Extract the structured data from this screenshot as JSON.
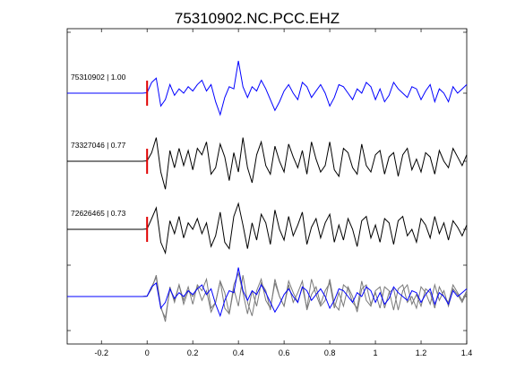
{
  "chart_data": {
    "type": "line",
    "title": "75310902.NC.PCC.EHZ",
    "xlabel": "",
    "ylabel": "",
    "xlim": [
      -0.35,
      1.4
    ],
    "xticks": [
      "-0.2",
      "0",
      "0.2",
      "0.4",
      "0.6",
      "0.8",
      "1",
      "1.2",
      "1.4"
    ],
    "xtick_values": [
      -0.2,
      0,
      0.2,
      0.4,
      0.6,
      0.8,
      1.0,
      1.2,
      1.4
    ],
    "grid": false,
    "pick_time": 0,
    "traces": [
      {
        "label": "75310902 | 1.00",
        "color": "#0000ff",
        "x": [
          -0.35,
          -0.1,
          -0.02,
          0.0,
          0.02,
          0.04,
          0.06,
          0.08,
          0.1,
          0.12,
          0.14,
          0.16,
          0.18,
          0.2,
          0.22,
          0.24,
          0.26,
          0.28,
          0.3,
          0.32,
          0.34,
          0.36,
          0.38,
          0.4,
          0.42,
          0.44,
          0.46,
          0.48,
          0.5,
          0.52,
          0.54,
          0.56,
          0.58,
          0.6,
          0.62,
          0.64,
          0.66,
          0.68,
          0.7,
          0.72,
          0.74,
          0.76,
          0.78,
          0.8,
          0.82,
          0.84,
          0.86,
          0.88,
          0.9,
          0.92,
          0.94,
          0.96,
          0.98,
          1.0,
          1.02,
          1.04,
          1.06,
          1.08,
          1.1,
          1.12,
          1.14,
          1.16,
          1.18,
          1.2,
          1.22,
          1.24,
          1.26,
          1.28,
          1.3,
          1.32,
          1.34,
          1.36,
          1.38,
          1.4
        ],
        "y": [
          0,
          0,
          0,
          0.02,
          0.5,
          0.7,
          -0.6,
          -0.3,
          0.4,
          -0.1,
          0.2,
          0.0,
          0.3,
          0.1,
          0.4,
          0.6,
          0.1,
          0.4,
          -0.4,
          -1.0,
          -0.2,
          0.3,
          0.2,
          1.5,
          0.3,
          -0.2,
          0.3,
          0.1,
          0.6,
          0.2,
          -0.3,
          -0.8,
          -0.4,
          0.1,
          0.4,
          0.0,
          -0.3,
          0.5,
          0.3,
          -0.2,
          0.1,
          0.4,
          0.0,
          -0.6,
          -0.2,
          0.4,
          0.3,
          0.0,
          -0.3,
          0.2,
          0.0,
          0.5,
          0.3,
          -0.3,
          0.2,
          -0.4,
          -0.1,
          0.5,
          0.2,
          0.0,
          -0.2,
          0.3,
          0.2,
          -0.3,
          0.1,
          0.4,
          -0.4,
          0.2,
          0.0,
          -0.4,
          0.3,
          0.0,
          0.2,
          0.4
        ]
      },
      {
        "label": "73327046 | 0.77",
        "color": "#000000",
        "x": [
          -0.35,
          -0.1,
          -0.02,
          0.0,
          0.02,
          0.04,
          0.06,
          0.08,
          0.1,
          0.12,
          0.14,
          0.16,
          0.18,
          0.2,
          0.22,
          0.24,
          0.26,
          0.28,
          0.3,
          0.32,
          0.34,
          0.36,
          0.38,
          0.4,
          0.42,
          0.44,
          0.46,
          0.48,
          0.5,
          0.52,
          0.54,
          0.56,
          0.58,
          0.6,
          0.62,
          0.64,
          0.66,
          0.68,
          0.7,
          0.72,
          0.74,
          0.76,
          0.78,
          0.8,
          0.82,
          0.84,
          0.86,
          0.88,
          0.9,
          0.92,
          0.94,
          0.96,
          0.98,
          1.0,
          1.02,
          1.04,
          1.06,
          1.08,
          1.1,
          1.12,
          1.14,
          1.16,
          1.18,
          1.2,
          1.22,
          1.24,
          1.26,
          1.28,
          1.3,
          1.32,
          1.34,
          1.36,
          1.38,
          1.4
        ],
        "y": [
          0,
          0,
          0,
          0.02,
          0.4,
          1.1,
          -0.5,
          -1.3,
          0.5,
          -0.3,
          0.6,
          -0.2,
          0.5,
          -0.4,
          0.6,
          0.3,
          0.9,
          -0.6,
          -0.3,
          0.8,
          0.2,
          -0.9,
          0.4,
          -0.5,
          1.1,
          -0.3,
          -1.0,
          0.3,
          0.9,
          -0.2,
          -0.6,
          0.7,
          0.0,
          -0.5,
          0.8,
          0.2,
          -0.3,
          0.5,
          -0.6,
          0.9,
          0.1,
          -0.5,
          -0.2,
          0.9,
          -0.4,
          -0.7,
          0.6,
          0.4,
          -0.3,
          -0.6,
          0.8,
          -0.2,
          -0.5,
          0.3,
          0.5,
          -0.6,
          0.2,
          0.4,
          -0.7,
          0.3,
          0.6,
          -0.4,
          0.1,
          -0.5,
          0.4,
          0.2,
          -0.6,
          0.5,
          0.0,
          -0.3,
          0.6,
          0.2,
          -0.2,
          0.3
        ]
      },
      {
        "label": "72626465 | 0.73",
        "color": "#000000",
        "x": [
          -0.35,
          -0.1,
          -0.02,
          0.0,
          0.02,
          0.04,
          0.06,
          0.08,
          0.1,
          0.12,
          0.14,
          0.16,
          0.18,
          0.2,
          0.22,
          0.24,
          0.26,
          0.28,
          0.3,
          0.32,
          0.34,
          0.36,
          0.38,
          0.4,
          0.42,
          0.44,
          0.46,
          0.48,
          0.5,
          0.52,
          0.54,
          0.56,
          0.58,
          0.6,
          0.62,
          0.64,
          0.66,
          0.68,
          0.7,
          0.72,
          0.74,
          0.76,
          0.78,
          0.8,
          0.82,
          0.84,
          0.86,
          0.88,
          0.9,
          0.92,
          0.94,
          0.96,
          0.98,
          1.0,
          1.02,
          1.04,
          1.06,
          1.08,
          1.1,
          1.12,
          1.14,
          1.16,
          1.18,
          1.2,
          1.22,
          1.24,
          1.26,
          1.28,
          1.3,
          1.32,
          1.34,
          1.36,
          1.38,
          1.4
        ],
        "y": [
          0,
          0,
          0,
          0.02,
          0.5,
          1.0,
          -0.6,
          -1.1,
          0.4,
          -0.2,
          0.6,
          -0.4,
          0.3,
          0.0,
          0.5,
          -0.2,
          0.3,
          -0.8,
          -0.3,
          0.8,
          -0.6,
          -0.9,
          0.6,
          1.2,
          0.2,
          -0.9,
          0.3,
          -0.5,
          0.7,
          0.3,
          -0.7,
          0.9,
          0.0,
          -0.5,
          0.6,
          -0.3,
          0.2,
          0.8,
          -0.7,
          0.1,
          0.5,
          -0.4,
          0.3,
          0.7,
          -0.6,
          0.2,
          -0.5,
          0.5,
          0.0,
          -0.8,
          0.4,
          0.6,
          -0.4,
          0.2,
          -0.6,
          0.5,
          0.3,
          -0.7,
          0.4,
          0.6,
          -0.3,
          0.0,
          -0.6,
          0.5,
          0.2,
          -0.4,
          0.6,
          -0.2,
          0.3,
          -0.5,
          0.4,
          0.1,
          -0.3,
          0.2
        ]
      }
    ]
  }
}
